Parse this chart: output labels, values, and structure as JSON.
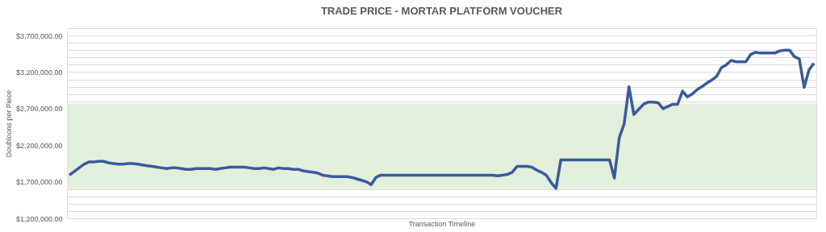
{
  "chart_data": {
    "type": "line",
    "title": "TRADE PRICE - MORTAR PLATFORM VOUCHER",
    "xlabel": "Transaction Timeline",
    "ylabel": "Doubloons per Piece",
    "categories": [
      null,
      null,
      null,
      null,
      null,
      null,
      null,
      null,
      null,
      null,
      null,
      null,
      null,
      null,
      null,
      null,
      null,
      null,
      null,
      null,
      null,
      null,
      null,
      null,
      null,
      null,
      null,
      null,
      null,
      null,
      null,
      null,
      null,
      null,
      null,
      null,
      null,
      null,
      null,
      null,
      null,
      null,
      null,
      null,
      null,
      null,
      null,
      null,
      null,
      null,
      null,
      null,
      null,
      null,
      null,
      null,
      null,
      null,
      null,
      null,
      null,
      null,
      null,
      null,
      null,
      null,
      null,
      null,
      null,
      null,
      null,
      null,
      null,
      null,
      null,
      null,
      null,
      null,
      null,
      null,
      null,
      null,
      null,
      null,
      null,
      null,
      null,
      null,
      null,
      null,
      null,
      null,
      null,
      null,
      null,
      null,
      null,
      null,
      null,
      null,
      null,
      null,
      null,
      null,
      null,
      null,
      null,
      null,
      null,
      null,
      null,
      null,
      null,
      null,
      null,
      null,
      null,
      null,
      null,
      null,
      null,
      null,
      null,
      null,
      null,
      null,
      null,
      null,
      null,
      null,
      null,
      null,
      null,
      null,
      null,
      null,
      null,
      null,
      null,
      null,
      null,
      null,
      null,
      null,
      null,
      null,
      null,
      null,
      null,
      null,
      null,
      null,
      null,
      null
    ],
    "series": [
      {
        "color": "#3a5a9c",
        "values": [
          1790000,
          1840000,
          1890000,
          1940000,
          1970000,
          1970000,
          1980000,
          1980000,
          1960000,
          1950000,
          1940000,
          1940000,
          1950000,
          1950000,
          1940000,
          1930000,
          1920000,
          1910000,
          1900000,
          1890000,
          1880000,
          1890000,
          1890000,
          1880000,
          1870000,
          1870000,
          1880000,
          1880000,
          1880000,
          1880000,
          1870000,
          1880000,
          1890000,
          1900000,
          1900000,
          1900000,
          1900000,
          1890000,
          1880000,
          1880000,
          1890000,
          1880000,
          1870000,
          1890000,
          1880000,
          1880000,
          1870000,
          1870000,
          1850000,
          1840000,
          1830000,
          1820000,
          1790000,
          1780000,
          1770000,
          1770000,
          1770000,
          1770000,
          1760000,
          1740000,
          1720000,
          1700000,
          1660000,
          1760000,
          1790000,
          1790000,
          1790000,
          1790000,
          1790000,
          1790000,
          1790000,
          1790000,
          1790000,
          1790000,
          1790000,
          1790000,
          1790000,
          1790000,
          1790000,
          1790000,
          1790000,
          1790000,
          1790000,
          1790000,
          1790000,
          1790000,
          1790000,
          1790000,
          1780000,
          1790000,
          1800000,
          1830000,
          1910000,
          1910000,
          1910000,
          1900000,
          1860000,
          1830000,
          1790000,
          1690000,
          1610000,
          2000000,
          2000000,
          2000000,
          2000000,
          2000000,
          2000000,
          2000000,
          2000000,
          2000000,
          2000000,
          2000000,
          1750000,
          2300000,
          2490000,
          3000000,
          2620000,
          2690000,
          2760000,
          2790000,
          2790000,
          2780000,
          2700000,
          2730000,
          2760000,
          2760000,
          2940000,
          2860000,
          2900000,
          2960000,
          3000000,
          3050000,
          3090000,
          3140000,
          3260000,
          3300000,
          3360000,
          3340000,
          3340000,
          3340000,
          3440000,
          3470000,
          3460000,
          3460000,
          3460000,
          3460000,
          3490000,
          3500000,
          3500000,
          3410000,
          3380000,
          2990000,
          3230000,
          3320000
        ]
      }
    ],
    "ylim": [
      1200000,
      3800000
    ],
    "yticks": [
      {
        "value": 1200000,
        "label": "$1,200,000.00"
      },
      {
        "value": 1300000,
        "label": null
      },
      {
        "value": 1400000,
        "label": null
      },
      {
        "value": 1500000,
        "label": null
      },
      {
        "value": 1600000,
        "label": null
      },
      {
        "value": 1700000,
        "label": "$1,700,000.00"
      },
      {
        "value": 2200000,
        "label": "$2,200,000.00"
      },
      {
        "value": 2700000,
        "label": "$2,700,000.00"
      },
      {
        "value": 2800000,
        "label": null
      },
      {
        "value": 2900000,
        "label": null
      },
      {
        "value": 3000000,
        "label": null
      },
      {
        "value": 3100000,
        "label": null
      },
      {
        "value": 3200000,
        "label": "$3,200,000.00"
      },
      {
        "value": 3300000,
        "label": null
      },
      {
        "value": 3400000,
        "label": null
      },
      {
        "value": 3500000,
        "label": null
      },
      {
        "value": 3600000,
        "label": null
      },
      {
        "value": 3700000,
        "label": "$3,700,000.00"
      },
      {
        "value": 3800000,
        "label": null
      }
    ],
    "tick_labels": "y",
    "grid": "y",
    "marker": "none",
    "line_style": "solid",
    "bands": [
      {
        "axis": "y",
        "from": 1600000,
        "to": 2770000,
        "color": "#e2efda"
      }
    ]
  }
}
